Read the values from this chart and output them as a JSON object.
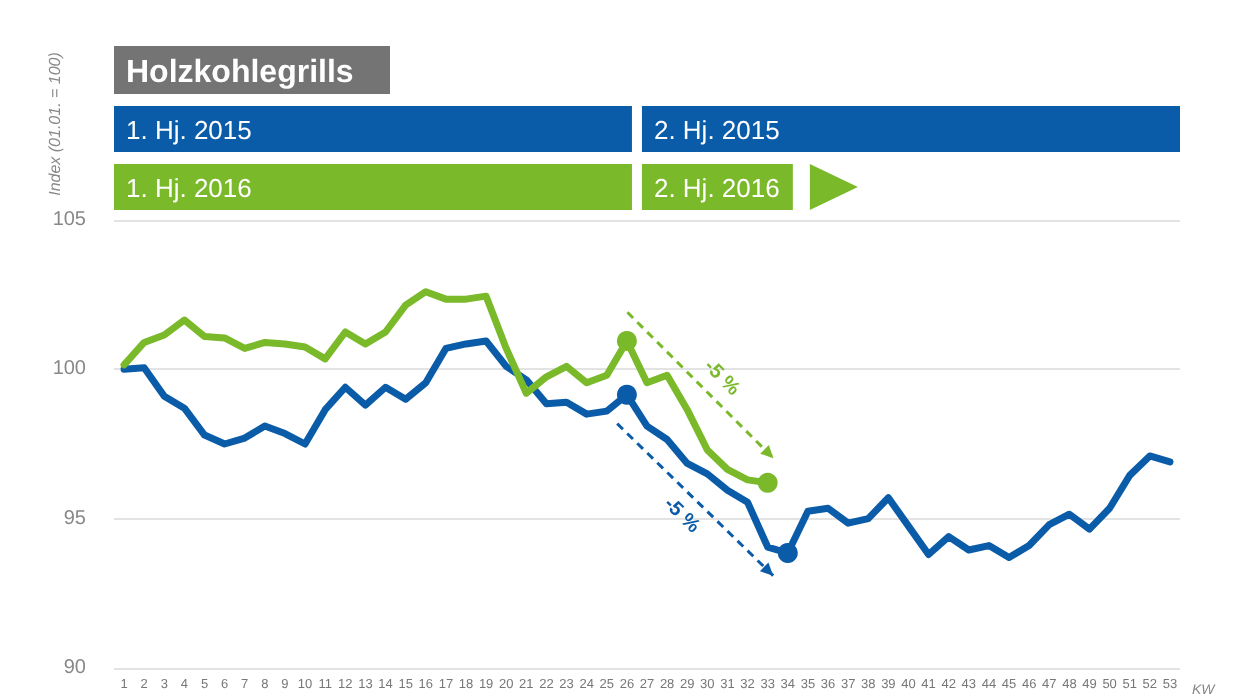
{
  "chart_data": {
    "type": "line",
    "title": "Holzkohlegrills",
    "ylabel": "Index (01.01. = 100)",
    "xlabel": "KW",
    "x": [
      1,
      2,
      3,
      4,
      5,
      6,
      7,
      8,
      9,
      10,
      11,
      12,
      13,
      14,
      15,
      16,
      17,
      18,
      19,
      20,
      21,
      22,
      23,
      24,
      25,
      26,
      27,
      28,
      29,
      30,
      31,
      32,
      33,
      34,
      35,
      36,
      37,
      38,
      39,
      40,
      41,
      42,
      43,
      44,
      45,
      46,
      47,
      48,
      49,
      50,
      51,
      52,
      53
    ],
    "series": [
      {
        "color": "#0b5ca8",
        "values": [
          100.0,
          100.05,
          99.1,
          98.7,
          97.8,
          97.5,
          97.7,
          98.1,
          97.85,
          97.5,
          98.65,
          99.4,
          98.8,
          99.4,
          99.0,
          99.55,
          100.7,
          100.85,
          100.95,
          100.1,
          99.65,
          98.85,
          98.9,
          98.5,
          98.6,
          99.15,
          98.1,
          97.65,
          96.85,
          96.5,
          95.95,
          95.55,
          94.05,
          93.85,
          95.25,
          95.35,
          94.85,
          95.0,
          95.7,
          94.75,
          93.8,
          94.4,
          93.95,
          94.1,
          93.7,
          94.1,
          94.8,
          95.15,
          94.65,
          95.35,
          96.45,
          97.1,
          96.9
        ]
      },
      {
        "color": "#7ab929",
        "values": [
          100.15,
          100.9,
          101.15,
          101.65,
          101.1,
          101.05,
          100.7,
          100.9,
          100.85,
          100.75,
          100.35,
          101.25,
          100.85,
          101.25,
          102.15,
          102.6,
          102.35,
          102.35,
          102.45,
          100.7,
          99.2,
          99.75,
          100.1,
          99.55,
          99.8,
          100.95,
          99.55,
          99.8,
          98.65,
          97.3,
          96.65,
          96.3,
          96.2,
          null,
          null,
          null,
          null,
          null,
          null,
          null,
          null,
          null,
          null,
          null,
          null,
          null,
          null,
          null,
          null,
          null,
          null,
          null,
          null
        ]
      },
      {
        "type": "scatter",
        "color": "#0b5ca8",
        "x": [
          26,
          34
        ],
        "values": [
          99.15,
          93.85
        ],
        "marker": "circle"
      },
      {
        "type": "scatter",
        "color": "#7ab929",
        "x": [
          26,
          33
        ],
        "values": [
          100.95,
          96.2
        ],
        "marker": "circle"
      }
    ],
    "xlim": [
      0.5,
      53.5
    ],
    "xticks": [
      1,
      2,
      3,
      4,
      5,
      6,
      7,
      8,
      9,
      10,
      11,
      12,
      13,
      14,
      15,
      16,
      17,
      18,
      19,
      20,
      21,
      22,
      23,
      24,
      25,
      26,
      27,
      28,
      29,
      30,
      31,
      32,
      33,
      34,
      35,
      36,
      37,
      38,
      39,
      40,
      41,
      42,
      43,
      44,
      45,
      46,
      47,
      48,
      49,
      50,
      51,
      52,
      53
    ],
    "ylim": [
      90,
      105
    ],
    "yticks": [
      90,
      95,
      100,
      105
    ],
    "grid": "y",
    "marker": "none",
    "line_style": "solid",
    "annotations": [
      "1. Hj. 2015",
      "2. Hj. 2015",
      "1. Hj. 2016",
      "2. Hj. 2016",
      "-5 %",
      "-5 %"
    ]
  }
}
